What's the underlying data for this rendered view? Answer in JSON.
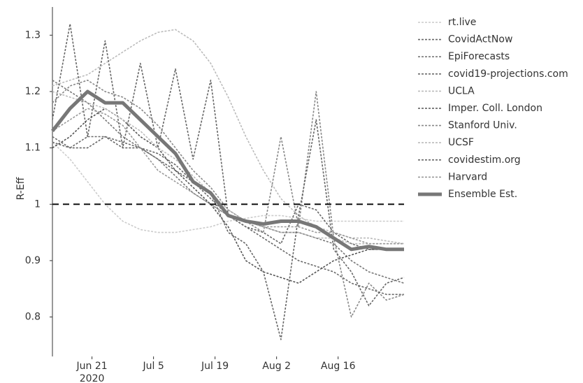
{
  "chart_data": {
    "type": "line",
    "y_label": "R-Eff",
    "x": [
      "2020-06-12",
      "2020-06-16",
      "2020-06-20",
      "2020-06-24",
      "2020-06-28",
      "2020-07-02",
      "2020-07-06",
      "2020-07-10",
      "2020-07-14",
      "2020-07-18",
      "2020-07-22",
      "2020-07-26",
      "2020-07-30",
      "2020-08-03",
      "2020-08-07",
      "2020-08-11",
      "2020-08-15",
      "2020-08-19",
      "2020-08-23",
      "2020-08-27",
      "2020-08-31"
    ],
    "xlim": [
      "2020-06-12",
      "2020-08-31"
    ],
    "xticks": [
      {
        "value": "2020-06-21",
        "label": "Jun 21"
      },
      {
        "value": "2020-07-05",
        "label": "Jul 5"
      },
      {
        "value": "2020-07-19",
        "label": "Jul 19"
      },
      {
        "value": "2020-08-02",
        "label": "Aug 2"
      },
      {
        "value": "2020-08-16",
        "label": "Aug 16"
      }
    ],
    "x_year_label": "2020",
    "ylim": [
      0.73,
      1.35
    ],
    "yticks": [
      0.8,
      0.9,
      1,
      1.1,
      1.2,
      1.3
    ],
    "reference_line": 1,
    "grid": false,
    "legend": "right",
    "series": [
      {
        "name": "rt.live",
        "color": "#cccccc",
        "dashed": true,
        "values": [
          1.11,
          1.08,
          1.04,
          1.0,
          0.97,
          0.955,
          0.95,
          0.95,
          0.955,
          0.96,
          0.97,
          0.975,
          0.98,
          0.98,
          0.975,
          0.97,
          0.97,
          0.97,
          0.97,
          0.97,
          0.97
        ]
      },
      {
        "name": "CovidActNow",
        "color": "#666666",
        "dashed": true,
        "values": [
          1.15,
          1.32,
          1.12,
          1.29,
          1.1,
          1.25,
          1.1,
          1.24,
          1.08,
          1.22,
          0.98,
          0.96,
          0.95,
          0.93,
          1.0,
          0.99,
          0.95,
          0.93,
          0.92,
          0.92,
          0.92
        ]
      },
      {
        "name": "EpiForecasts",
        "color": "#777777",
        "dashed": true,
        "values": [
          1.22,
          1.2,
          1.18,
          1.15,
          1.12,
          1.1,
          1.08,
          1.05,
          1.02,
          1.0,
          0.98,
          0.97,
          0.96,
          0.95,
          0.95,
          0.94,
          0.93,
          0.9,
          0.88,
          0.87,
          0.86
        ]
      },
      {
        "name": "covid19-projections.com",
        "color": "#6a6a6a",
        "dashed": true,
        "values": [
          1.12,
          1.1,
          1.12,
          1.12,
          1.11,
          1.1,
          1.08,
          1.06,
          1.04,
          1.01,
          0.98,
          0.96,
          0.94,
          0.92,
          0.9,
          0.89,
          0.88,
          0.86,
          0.85,
          0.84,
          0.84
        ]
      },
      {
        "name": "UCLA",
        "color": "#bbbbbb",
        "dashed": true,
        "values": [
          1.21,
          1.22,
          1.23,
          1.25,
          1.27,
          1.29,
          1.305,
          1.31,
          1.29,
          1.25,
          1.19,
          1.12,
          1.06,
          1.01,
          0.98,
          0.96,
          0.95,
          0.94,
          0.94,
          0.935,
          0.93
        ]
      },
      {
        "name": "Imper. Coll. London",
        "color": "#555555",
        "dashed": true,
        "values": [
          1.1,
          1.12,
          1.15,
          1.17,
          1.15,
          1.12,
          1.1,
          1.06,
          1.03,
          1.0,
          0.96,
          0.9,
          0.88,
          0.87,
          0.86,
          0.88,
          0.9,
          0.91,
          0.92,
          0.92,
          0.92
        ]
      },
      {
        "name": "Stanford Univ.",
        "color": "#888888",
        "dashed": true,
        "values": [
          1.18,
          1.21,
          1.22,
          1.2,
          1.19,
          1.17,
          1.14,
          1.1,
          1.06,
          1.03,
          0.99,
          0.97,
          0.95,
          1.12,
          0.96,
          1.2,
          0.94,
          0.8,
          0.86,
          0.83,
          0.84
        ]
      },
      {
        "name": "UCSF",
        "color": "#bbbbbb",
        "dashed": true,
        "values": [
          1.2,
          1.19,
          1.18,
          1.17,
          1.15,
          1.13,
          1.1,
          1.08,
          1.05,
          1.02,
          0.99,
          0.97,
          0.96,
          0.95,
          0.95,
          0.94,
          0.94,
          0.93,
          0.93,
          0.93,
          0.93
        ]
      },
      {
        "name": "covidestim.org",
        "color": "#666666",
        "dashed": true,
        "values": [
          1.11,
          1.1,
          1.1,
          1.12,
          1.1,
          1.1,
          1.09,
          1.07,
          1.04,
          1.02,
          0.95,
          0.93,
          0.88,
          0.76,
          0.98,
          1.15,
          0.92,
          0.88,
          0.82,
          0.86,
          0.87
        ]
      },
      {
        "name": "Harvard",
        "color": "#999999",
        "dashed": true,
        "values": [
          1.13,
          1.15,
          1.17,
          1.16,
          1.14,
          1.1,
          1.06,
          1.04,
          1.02,
          1.0,
          0.98,
          0.97,
          0.96,
          0.96,
          0.96,
          0.95,
          0.95,
          0.94,
          0.93,
          0.93,
          0.93
        ]
      },
      {
        "name": "Ensemble Est.",
        "color": "#777777",
        "dashed": false,
        "values": [
          1.13,
          1.17,
          1.2,
          1.18,
          1.18,
          1.15,
          1.12,
          1.09,
          1.04,
          1.02,
          0.98,
          0.97,
          0.965,
          0.97,
          0.97,
          0.96,
          0.94,
          0.92,
          0.925,
          0.92,
          0.92
        ]
      }
    ]
  }
}
